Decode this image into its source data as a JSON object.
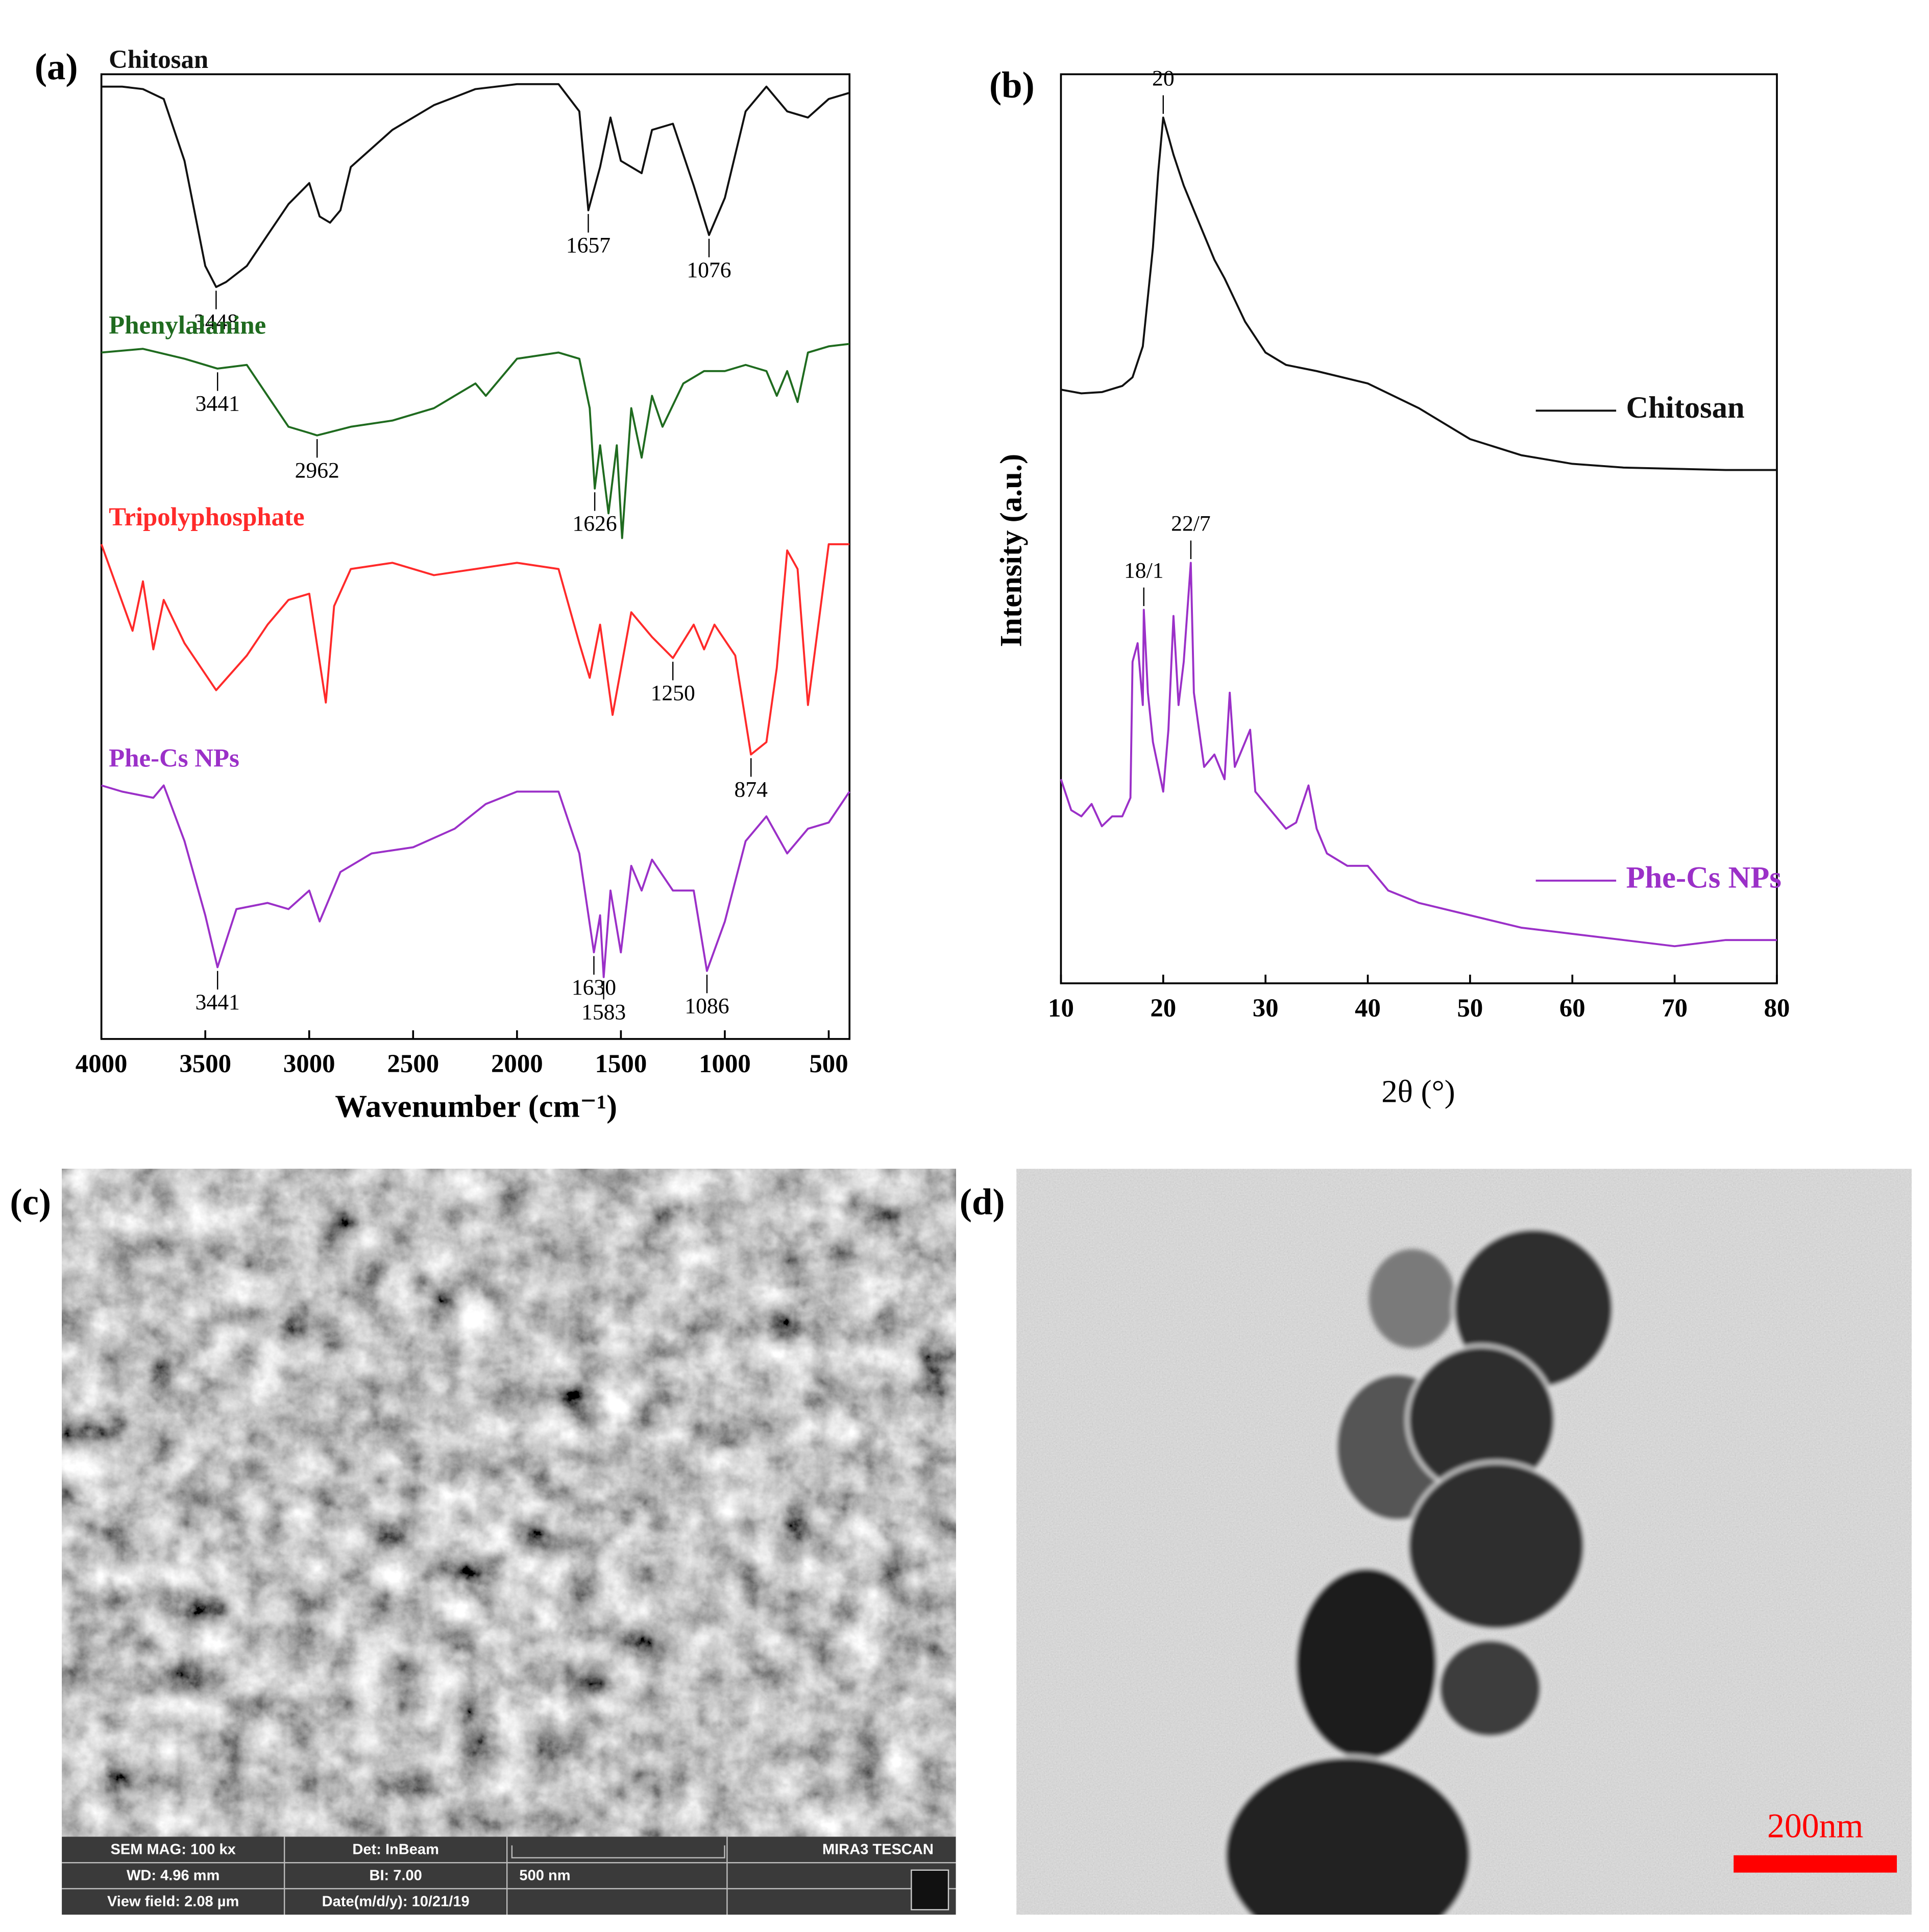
{
  "chart_data": [
    {
      "type": "line",
      "panel_label": "(a)",
      "x_label": "Wavenumber (cm⁻¹)",
      "xlim": [
        4000,
        400
      ],
      "ylim": [
        0,
        78
      ],
      "xticks": [
        4000,
        3500,
        3000,
        2500,
        2000,
        1500,
        1000,
        500
      ],
      "series": [
        {
          "name": "Chitosan",
          "color": "#111111",
          "x": [
            4000,
            3900,
            3800,
            3700,
            3600,
            3500,
            3448,
            3400,
            3300,
            3200,
            3100,
            3000,
            2950,
            2900,
            2850,
            2800,
            2600,
            2400,
            2200,
            2000,
            1800,
            1700,
            1657,
            1600,
            1550,
            1500,
            1400,
            1350,
            1250,
            1150,
            1076,
            1000,
            900,
            800,
            700,
            600,
            500,
            400
          ],
          "values": [
            77,
            77,
            76.8,
            76,
            71,
            62.5,
            60.8,
            61.2,
            62.5,
            65,
            67.5,
            69.2,
            66.5,
            66,
            67,
            70.5,
            73.5,
            75.5,
            76.8,
            77.2,
            77.2,
            75,
            67,
            70.5,
            74.5,
            71,
            70,
            73.5,
            74,
            69,
            65,
            68,
            75,
            77,
            75,
            74.5,
            76,
            76.5
          ],
          "peaks": [
            {
              "label": "3448",
              "x": 3448
            },
            {
              "label": "1657",
              "x": 1657
            },
            {
              "label": "1076",
              "x": 1076
            }
          ]
        },
        {
          "name": "Phenylalanine",
          "color": "#1f6b1f",
          "x": [
            4000,
            3800,
            3600,
            3441,
            3300,
            3200,
            3100,
            3000,
            2962,
            2800,
            2600,
            2400,
            2200,
            2150,
            2000,
            1800,
            1700,
            1650,
            1626,
            1600,
            1560,
            1520,
            1494,
            1450,
            1400,
            1350,
            1300,
            1200,
            1100,
            1000,
            900,
            800,
            750,
            700,
            650,
            600,
            500,
            400
          ],
          "values": [
            55.5,
            55.8,
            55,
            54.2,
            54.5,
            52,
            49.5,
            49,
            48.8,
            49.5,
            50,
            51,
            53,
            52,
            55,
            55.5,
            55,
            51,
            44.5,
            48,
            42.5,
            48,
            40.5,
            51,
            47,
            52,
            49.5,
            53,
            54,
            54,
            54.5,
            54,
            52,
            54,
            51.5,
            55.5,
            56,
            56.2
          ],
          "peaks": [
            {
              "label": "3441",
              "x": 3441
            },
            {
              "label": "2962",
              "x": 2962
            },
            {
              "label": "1626",
              "x": 1626
            }
          ]
        },
        {
          "name": "Tripolyphosphate",
          "color": "#ff2a2a",
          "x": [
            4000,
            3850,
            3800,
            3750,
            3700,
            3600,
            3448,
            3300,
            3200,
            3100,
            3000,
            2920,
            2880,
            2800,
            2600,
            2400,
            2200,
            2000,
            1800,
            1700,
            1650,
            1600,
            1540,
            1450,
            1350,
            1250,
            1150,
            1100,
            1050,
            950,
            874,
            800,
            750,
            700,
            650,
            600,
            500,
            400
          ],
          "values": [
            40,
            33,
            37,
            31.5,
            35.5,
            32,
            28.2,
            31,
            33.5,
            35.5,
            36,
            27.2,
            35,
            38,
            38.5,
            37.5,
            38,
            38.5,
            38,
            32,
            29.2,
            33.5,
            26.2,
            34.5,
            32.5,
            30.8,
            33.5,
            31.5,
            33.5,
            31,
            23,
            24,
            30,
            39.5,
            38,
            27,
            40,
            40
          ],
          "peaks": [
            {
              "label": "1250",
              "x": 1250
            },
            {
              "label": "874",
              "x": 874
            }
          ]
        },
        {
          "name": "Phe-Cs NPs",
          "color": "#9b30c8",
          "x": [
            4000,
            3900,
            3750,
            3700,
            3600,
            3500,
            3441,
            3350,
            3200,
            3100,
            3000,
            2950,
            2850,
            2700,
            2500,
            2300,
            2150,
            2000,
            1800,
            1700,
            1630,
            1600,
            1583,
            1550,
            1500,
            1450,
            1400,
            1350,
            1250,
            1150,
            1086,
            1000,
            900,
            800,
            700,
            600,
            500,
            400
          ],
          "values": [
            20.5,
            20,
            19.5,
            20.5,
            16,
            10,
            5.8,
            10.5,
            11,
            10.5,
            12,
            9.5,
            13.5,
            15,
            15.5,
            17,
            19,
            20,
            20,
            15,
            7,
            10,
            5,
            12,
            7,
            14,
            12,
            14.5,
            12,
            12,
            5.5,
            9.5,
            16,
            18,
            15,
            17,
            17.5,
            20
          ],
          "peaks": [
            {
              "label": "3441",
              "x": 3441
            },
            {
              "label": "1630",
              "x": 1630
            },
            {
              "label": "1583",
              "x": 1583
            },
            {
              "label": "1086",
              "x": 1086
            }
          ]
        }
      ]
    },
    {
      "type": "line",
      "panel_label": "(b)",
      "x_label": "2θ (°)",
      "y_label": "Intensity (a.u.)",
      "xlim": [
        10,
        80
      ],
      "ylim": [
        0,
        73.5
      ],
      "xticks": [
        10,
        20,
        30,
        40,
        50,
        60,
        70,
        80
      ],
      "legend": "right",
      "series": [
        {
          "name": "Chitosan",
          "color": "#111111",
          "x": [
            10,
            12,
            14,
            16,
            17,
            18,
            19,
            19.5,
            20,
            21,
            22,
            23,
            24,
            25,
            26,
            28,
            30,
            32,
            35,
            40,
            45,
            50,
            55,
            60,
            65,
            70,
            75,
            80
          ],
          "values": [
            48,
            47.7,
            47.8,
            48.3,
            49,
            51.5,
            59.5,
            65.5,
            70,
            67,
            64.5,
            62.5,
            60.5,
            58.5,
            57,
            53.5,
            51,
            50,
            49.5,
            48.5,
            46.5,
            44,
            42.7,
            42,
            41.7,
            41.6,
            41.5,
            41.5
          ],
          "peaks": [
            {
              "label": "20",
              "x": 20
            }
          ]
        },
        {
          "name": "Phe-Cs NPs",
          "color": "#9b30c8",
          "x": [
            10,
            11,
            12,
            13,
            14,
            15,
            16,
            16.8,
            17,
            17.5,
            18,
            18.1,
            18.5,
            19,
            20,
            20.5,
            21,
            21.5,
            22,
            22.7,
            23,
            24,
            25,
            26,
            26.5,
            27,
            28,
            28.5,
            29,
            30,
            31,
            32,
            33,
            34.2,
            35,
            36,
            38,
            40,
            42,
            45,
            50,
            55,
            60,
            65,
            70,
            75,
            80
          ],
          "values": [
            16.5,
            14,
            13.5,
            14.5,
            12.7,
            13.5,
            13.5,
            15,
            26,
            27.5,
            22.5,
            30.2,
            23.5,
            19.5,
            15.5,
            20.5,
            29.7,
            22.5,
            26,
            34,
            23.5,
            17.5,
            18.5,
            16.5,
            23.5,
            17.5,
            19.5,
            20.5,
            15.5,
            14.5,
            13.5,
            12.5,
            13,
            16,
            12.5,
            10.5,
            9.5,
            9.5,
            7.5,
            6.5,
            5.5,
            4.5,
            4,
            3.5,
            3,
            3.5,
            3.5
          ],
          "peaks": [
            {
              "label": "18/1",
              "x": 18.1
            },
            {
              "label": "22/7",
              "x": 22.7
            }
          ]
        }
      ]
    }
  ],
  "images": [
    {
      "panel_label": "(c)",
      "info": [
        "SEM MAG: 100 kx",
        "Det: InBeam",
        "MIRA3 TESCAN",
        "WD: 4.96 mm",
        "BI: 7.00",
        "500 nm",
        "View field: 2.08 µm",
        "Date(m/d/y): 10/21/19"
      ]
    },
    {
      "panel_label": "(d)",
      "scale_bar": "200nm"
    }
  ]
}
